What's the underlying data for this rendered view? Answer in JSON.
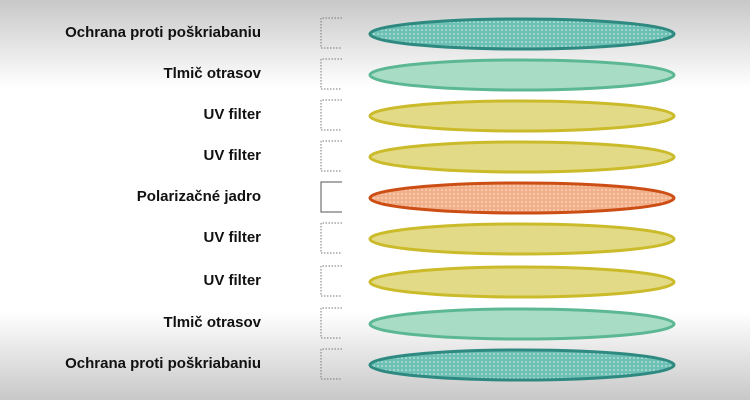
{
  "layers": [
    {
      "label": "Ochrana proti poškriabaniu"
    },
    {
      "label": "Tlmič otrasov"
    },
    {
      "label": "UV filter"
    },
    {
      "label": "UV filter"
    },
    {
      "label": "Polarizačné jadro"
    },
    {
      "label": "UV filter"
    },
    {
      "label": "UV filter"
    },
    {
      "label": "Tlmič otrasov"
    },
    {
      "label": "Ochrana proti poškriabaniu"
    }
  ]
}
